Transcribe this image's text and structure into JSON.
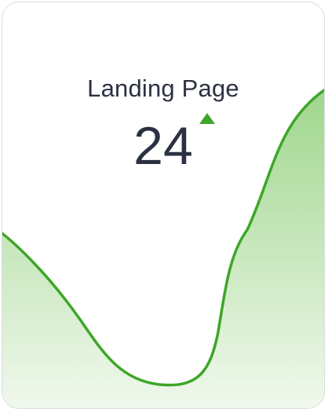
{
  "card": {
    "title": "Landing Page",
    "value": "24",
    "trend": "up",
    "trend_icon": "triangle-up-icon"
  },
  "colors": {
    "text": "#2b3142",
    "accent": "#3ea628",
    "fill_top": "#9fd68c",
    "fill_bottom": "#f2f9ef",
    "border": "#d9dbe0"
  }
}
